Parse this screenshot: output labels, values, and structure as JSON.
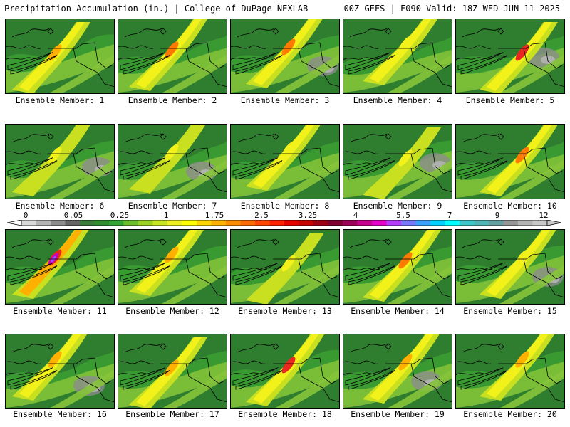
{
  "header": {
    "left": "Precipitation Accumulation (in.) | College of DuPage NEXLAB",
    "right": "00Z GEFS | F090 Valid: 18Z WED JUN 11 2025"
  },
  "panels": [
    {
      "label": "Ensemble Member: 1"
    },
    {
      "label": "Ensemble Member: 2"
    },
    {
      "label": "Ensemble Member: 3"
    },
    {
      "label": "Ensemble Member: 4"
    },
    {
      "label": "Ensemble Member: 5"
    },
    {
      "label": "Ensemble Member: 6"
    },
    {
      "label": "Ensemble Member: 7"
    },
    {
      "label": "Ensemble Member: 8"
    },
    {
      "label": "Ensemble Member: 9"
    },
    {
      "label": "Ensemble Member: 10"
    },
    {
      "label": "Ensemble Member: 11"
    },
    {
      "label": "Ensemble Member: 12"
    },
    {
      "label": "Ensemble Member: 13"
    },
    {
      "label": "Ensemble Member: 14"
    },
    {
      "label": "Ensemble Member: 15"
    },
    {
      "label": "Ensemble Member: 16"
    },
    {
      "label": "Ensemble Member: 17"
    },
    {
      "label": "Ensemble Member: 18"
    },
    {
      "label": "Ensemble Member: 19"
    },
    {
      "label": "Ensemble Member: 20"
    }
  ],
  "colorbar": {
    "tick_labels": [
      "0",
      "0.05",
      "0.25",
      "1",
      "1.75",
      "2.5",
      "3.25",
      "4",
      "5.5",
      "7",
      "9",
      "12"
    ],
    "colors": [
      "#d9d9d9",
      "#b4b4b4",
      "#8c8c8c",
      "#646464",
      "#3a7a3a",
      "#2e8b2e",
      "#36a336",
      "#6cbf2a",
      "#9ad21e",
      "#c8e61e",
      "#eef01e",
      "#ffff00",
      "#ffd700",
      "#ffb300",
      "#ff8c00",
      "#ff6a00",
      "#ff4500",
      "#ff2000",
      "#e60000",
      "#c80000",
      "#a00014",
      "#800032",
      "#a0005a",
      "#c8008c",
      "#e600c8",
      "#b43cff",
      "#7878ff",
      "#3ca0ff",
      "#00d2ff",
      "#00ffff",
      "#3cc8c8",
      "#50b4b4",
      "#64a0a0",
      "#969696",
      "#b4b4b4",
      "#c8c8c8"
    ]
  },
  "map_colors": {
    "dark_green": "#2f7d2f",
    "green": "#3a9a32",
    "light_green": "#86c43a",
    "yellow_green": "#c8e020",
    "yellow": "#f2f21a",
    "orange": "#ffb000",
    "dark_orange": "#ff7a00",
    "red": "#e8281e",
    "grey": "#8c8c8c",
    "light_grey": "#b4b4b4",
    "magenta": "#c800c8",
    "purple": "#9a50ff"
  }
}
